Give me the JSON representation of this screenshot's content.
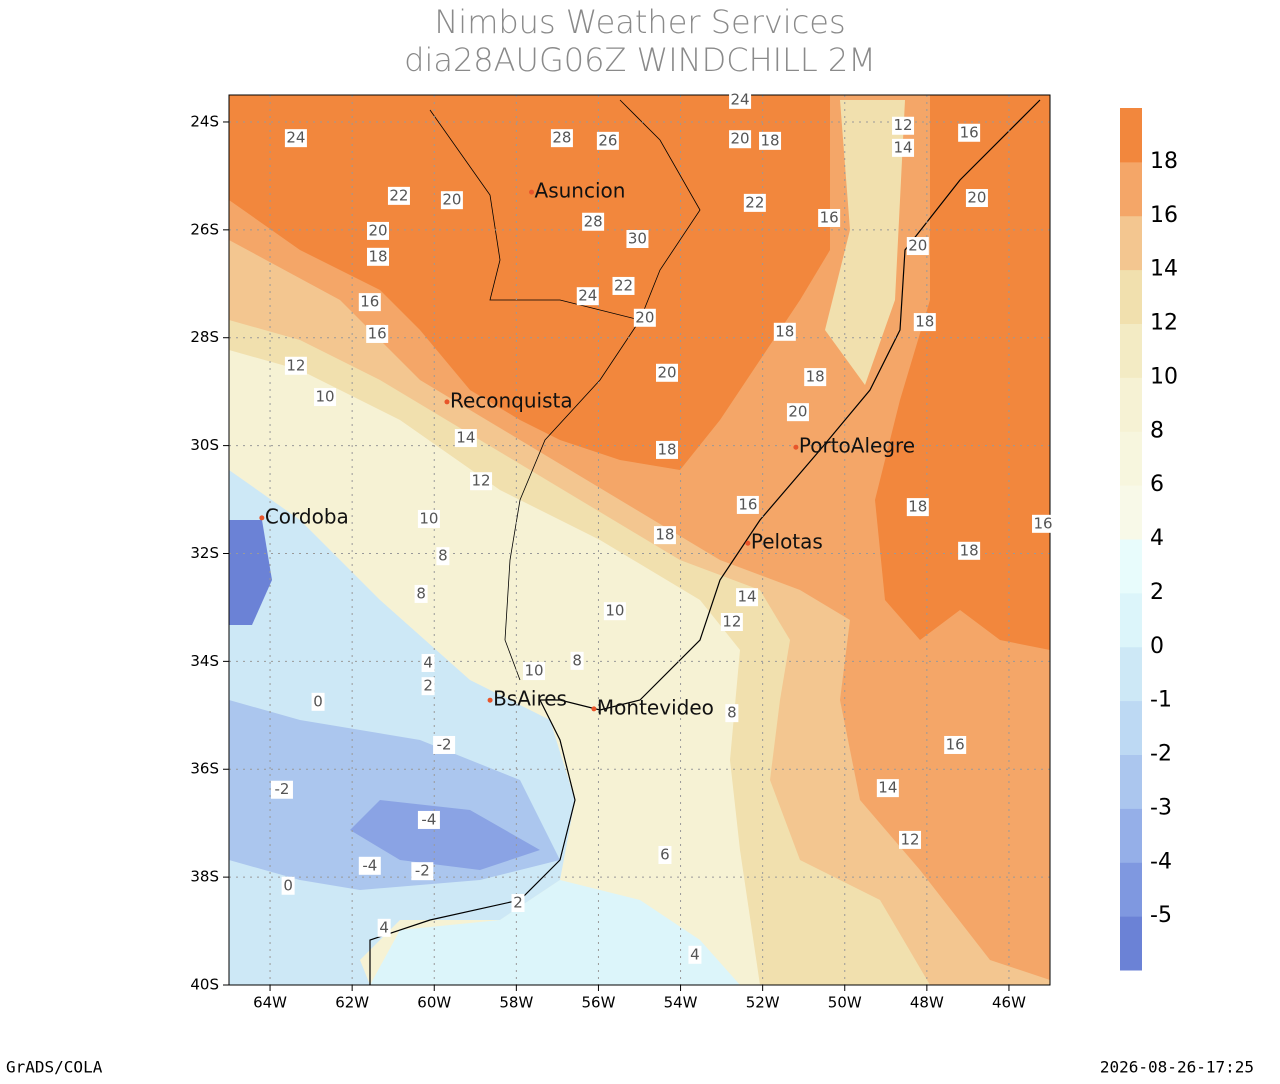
{
  "header": {
    "title": "Nimbus Weather Services",
    "subtitle": "dia28AUG06Z WINDCHILL 2M"
  },
  "map": {
    "xlim": [
      -65,
      -45
    ],
    "ylim": [
      -40,
      -23.5
    ],
    "xticks": [
      {
        "value": -64,
        "label": "64W"
      },
      {
        "value": -62,
        "label": "62W"
      },
      {
        "value": -60,
        "label": "60W"
      },
      {
        "value": -58,
        "label": "58W"
      },
      {
        "value": -56,
        "label": "56W"
      },
      {
        "value": -54,
        "label": "54W"
      },
      {
        "value": -52,
        "label": "52W"
      },
      {
        "value": -50,
        "label": "50W"
      },
      {
        "value": -48,
        "label": "48W"
      },
      {
        "value": -46,
        "label": "46W"
      }
    ],
    "yticks": [
      {
        "value": -24,
        "label": "24S"
      },
      {
        "value": -26,
        "label": "26S"
      },
      {
        "value": -28,
        "label": "28S"
      },
      {
        "value": -30,
        "label": "30S"
      },
      {
        "value": -32,
        "label": "32S"
      },
      {
        "value": -34,
        "label": "34S"
      },
      {
        "value": -36,
        "label": "36S"
      },
      {
        "value": -38,
        "label": "38S"
      },
      {
        "value": -40,
        "label": "40S"
      }
    ],
    "grid": true,
    "cities": [
      {
        "label": "Asuncion",
        "lon": -57.63,
        "lat": -25.3
      },
      {
        "label": "Reconquista",
        "lon": -59.69,
        "lat": -29.19
      },
      {
        "label": "PortoAlegre",
        "lon": -51.19,
        "lat": -30.03
      },
      {
        "label": "Pelotas",
        "lon": -52.36,
        "lat": -31.81
      },
      {
        "label": "Cordoba",
        "lon": -64.2,
        "lat": -31.34
      },
      {
        "label": "BsAires",
        "lon": -58.64,
        "lat": -34.72
      },
      {
        "label": "Montevideo",
        "lon": -56.11,
        "lat": -34.88
      }
    ],
    "contour_labels": [
      {
        "value": 24,
        "lon": -63.37,
        "lat": -24.3
      },
      {
        "value": 22,
        "lon": -60.86,
        "lat": -25.37
      },
      {
        "value": 20,
        "lon": -59.57,
        "lat": -25.45
      },
      {
        "value": 28,
        "lon": -56.89,
        "lat": -24.3
      },
      {
        "value": 26,
        "lon": -55.77,
        "lat": -24.35
      },
      {
        "value": 20,
        "lon": -52.55,
        "lat": -24.32
      },
      {
        "value": 18,
        "lon": -51.82,
        "lat": -24.35
      },
      {
        "value": 24,
        "lon": -52.55,
        "lat": -23.59
      },
      {
        "value": 12,
        "lon": -48.58,
        "lat": -24.07
      },
      {
        "value": 14,
        "lon": -48.58,
        "lat": -24.48
      },
      {
        "value": 16,
        "lon": -46.97,
        "lat": -24.2
      },
      {
        "value": 20,
        "lon": -46.78,
        "lat": -25.41
      },
      {
        "value": 20,
        "lon": -48.22,
        "lat": -26.3
      },
      {
        "value": 18,
        "lon": -48.05,
        "lat": -27.71
      },
      {
        "value": 20,
        "lon": -61.37,
        "lat": -26.02
      },
      {
        "value": 18,
        "lon": -61.37,
        "lat": -26.5
      },
      {
        "value": 16,
        "lon": -61.57,
        "lat": -27.34
      },
      {
        "value": 16,
        "lon": -61.39,
        "lat": -27.93
      },
      {
        "value": 12,
        "lon": -63.37,
        "lat": -28.52
      },
      {
        "value": 10,
        "lon": -62.66,
        "lat": -29.1
      },
      {
        "value": 14,
        "lon": -59.23,
        "lat": -29.86
      },
      {
        "value": 12,
        "lon": -58.86,
        "lat": -30.66
      },
      {
        "value": 10,
        "lon": -60.13,
        "lat": -31.36
      },
      {
        "value": 8,
        "lon": -59.79,
        "lat": -32.05
      },
      {
        "value": 8,
        "lon": -60.32,
        "lat": -32.75
      },
      {
        "value": 10,
        "lon": -55.6,
        "lat": -33.07
      },
      {
        "value": 10,
        "lon": -57.57,
        "lat": -34.18
      },
      {
        "value": 8,
        "lon": -56.52,
        "lat": -33.99
      },
      {
        "value": 4,
        "lon": -60.15,
        "lat": -34.03
      },
      {
        "value": 2,
        "lon": -60.15,
        "lat": -34.46
      },
      {
        "value": 0,
        "lon": -62.83,
        "lat": -34.75
      },
      {
        "value": -2,
        "lon": -59.76,
        "lat": -35.55
      },
      {
        "value": -2,
        "lon": -63.71,
        "lat": -36.38
      },
      {
        "value": -4,
        "lon": -60.13,
        "lat": -36.94
      },
      {
        "value": -4,
        "lon": -61.57,
        "lat": -37.79
      },
      {
        "value": -2,
        "lon": -60.29,
        "lat": -37.89
      },
      {
        "value": 0,
        "lon": -63.56,
        "lat": -38.16
      },
      {
        "value": 4,
        "lon": -61.22,
        "lat": -38.94
      },
      {
        "value": 2,
        "lon": -57.96,
        "lat": -38.48
      },
      {
        "value": 6,
        "lon": -54.38,
        "lat": -37.59
      },
      {
        "value": 4,
        "lon": -53.65,
        "lat": -39.44
      },
      {
        "value": 8,
        "lon": -52.75,
        "lat": -34.96
      },
      {
        "value": 14,
        "lon": -48.95,
        "lat": -36.35
      },
      {
        "value": 12,
        "lon": -48.41,
        "lat": -37.31
      },
      {
        "value": 16,
        "lon": -47.31,
        "lat": -35.55
      },
      {
        "value": 18,
        "lon": -46.97,
        "lat": -31.95
      },
      {
        "value": 18,
        "lon": -48.22,
        "lat": -31.14
      },
      {
        "value": 16,
        "lon": -45.17,
        "lat": -31.45
      },
      {
        "value": 20,
        "lon": -54.33,
        "lat": -28.65
      },
      {
        "value": 18,
        "lon": -54.33,
        "lat": -30.08
      },
      {
        "value": 18,
        "lon": -51.46,
        "lat": -27.89
      },
      {
        "value": 20,
        "lon": -51.14,
        "lat": -29.38
      },
      {
        "value": 16,
        "lon": -52.36,
        "lat": -31.1
      },
      {
        "value": 18,
        "lon": -54.38,
        "lat": -31.66
      },
      {
        "value": 14,
        "lon": -52.38,
        "lat": -32.81
      },
      {
        "value": 12,
        "lon": -52.75,
        "lat": -33.27
      },
      {
        "value": 18,
        "lon": -50.72,
        "lat": -28.73
      },
      {
        "value": 20,
        "lon": -54.87,
        "lat": -27.63
      },
      {
        "value": 24,
        "lon": -56.26,
        "lat": -27.23
      },
      {
        "value": 22,
        "lon": -55.39,
        "lat": -27.04
      },
      {
        "value": 30,
        "lon": -55.05,
        "lat": -26.17
      },
      {
        "value": 28,
        "lon": -56.13,
        "lat": -25.85
      },
      {
        "value": 22,
        "lon": -52.19,
        "lat": -25.5
      },
      {
        "value": 16,
        "lon": -50.38,
        "lat": -25.78
      }
    ],
    "colorbar": {
      "levels": [
        -5,
        -4,
        -3,
        -2,
        -1,
        0,
        2,
        4,
        6,
        8,
        10,
        12,
        14,
        16,
        18
      ],
      "colors": [
        "#6b82d6",
        "#7f98e0",
        "#95afe8",
        "#abc6ee",
        "#bdd9f3",
        "#cde8f6",
        "#dcf5fa",
        "#e8fcfc",
        "#f8f9e8",
        "#f7f6de",
        "#f6f2d4",
        "#f3ebc4",
        "#f1e0ae",
        "#f3c690",
        "#f4a668",
        "#f2873d"
      ]
    }
  },
  "footer": {
    "left": "GrADS/COLA",
    "right": "2026-08-26-17:25"
  }
}
